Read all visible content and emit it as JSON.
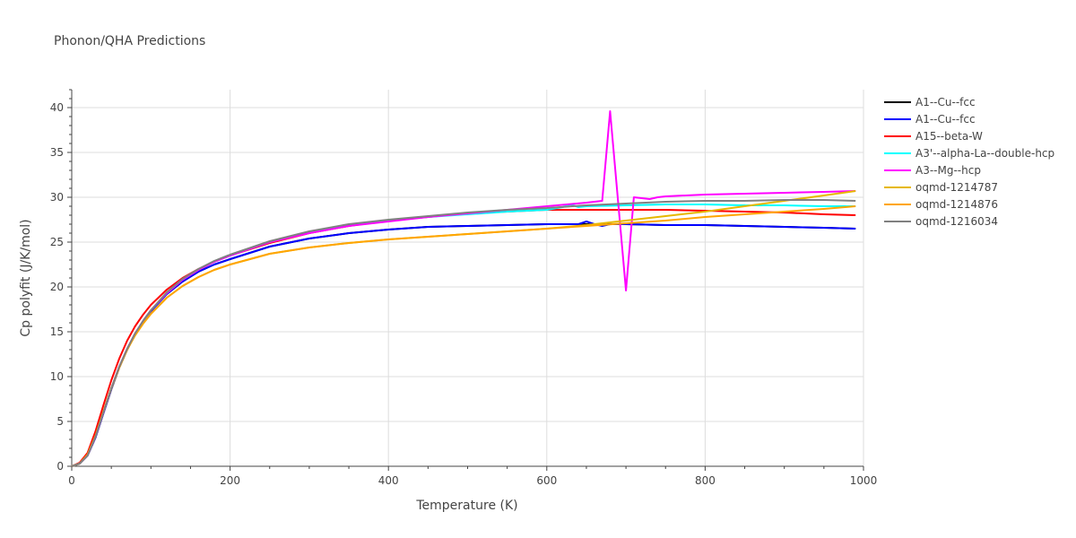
{
  "chart_data": {
    "type": "line",
    "title": "Phonon/QHA Predictions",
    "xlabel": "Temperature (K)",
    "ylabel": "Cp polyfit (J/K/mol)",
    "xlim": [
      0,
      1000
    ],
    "ylim": [
      0,
      42
    ],
    "xticks": [
      0,
      200,
      400,
      600,
      800,
      1000
    ],
    "yticks": [
      0,
      5,
      10,
      15,
      20,
      25,
      30,
      35,
      40
    ],
    "grid": true,
    "legend_position": "top-right",
    "series": [
      {
        "name": "A1--Cu--fcc",
        "color": "#000000",
        "x": [
          0,
          10,
          20,
          30,
          40,
          50,
          60,
          70,
          80,
          90,
          100,
          120,
          140,
          160,
          180,
          200,
          250,
          300,
          350,
          400,
          450,
          500,
          550,
          600,
          650,
          700,
          750,
          800,
          850,
          900,
          950,
          990
        ],
        "y": [
          0,
          0.3,
          1.2,
          3.2,
          5.9,
          8.6,
          11.0,
          13.0,
          14.7,
          16.1,
          17.3,
          19.2,
          20.6,
          21.7,
          22.5,
          23.1,
          24.5,
          25.4,
          26.0,
          26.4,
          26.7,
          26.8,
          26.9,
          27.0,
          27.0,
          27.0,
          26.9,
          26.9,
          26.8,
          26.7,
          26.6,
          26.5
        ]
      },
      {
        "name": "A1--Cu--fcc",
        "color": "#0000ff",
        "x": [
          0,
          10,
          20,
          30,
          40,
          50,
          60,
          70,
          80,
          90,
          100,
          120,
          140,
          160,
          180,
          200,
          250,
          300,
          350,
          400,
          450,
          500,
          550,
          600,
          640,
          650,
          660,
          670,
          680,
          700,
          750,
          800,
          850,
          900,
          950,
          990
        ],
        "y": [
          0,
          0.3,
          1.2,
          3.2,
          5.9,
          8.6,
          11.0,
          13.0,
          14.7,
          16.1,
          17.3,
          19.2,
          20.6,
          21.7,
          22.5,
          23.1,
          24.5,
          25.4,
          26.0,
          26.4,
          26.7,
          26.8,
          26.9,
          27.0,
          27.0,
          27.3,
          27.0,
          26.8,
          27.0,
          27.0,
          26.9,
          26.9,
          26.8,
          26.7,
          26.6,
          26.5
        ]
      },
      {
        "name": "A15--beta-W",
        "color": "#ff0000",
        "x": [
          0,
          10,
          20,
          30,
          40,
          50,
          60,
          70,
          80,
          90,
          100,
          120,
          140,
          160,
          180,
          200,
          250,
          300,
          350,
          400,
          450,
          500,
          550,
          600,
          650,
          700,
          750,
          800,
          850,
          900,
          950,
          990
        ],
        "y": [
          0,
          0.4,
          1.5,
          3.9,
          6.8,
          9.6,
          12.0,
          14.0,
          15.6,
          16.9,
          18.0,
          19.7,
          21.0,
          22.0,
          22.8,
          23.5,
          24.9,
          26.0,
          26.8,
          27.4,
          27.8,
          28.2,
          28.4,
          28.6,
          28.6,
          28.6,
          28.6,
          28.5,
          28.4,
          28.3,
          28.1,
          28.0
        ]
      },
      {
        "name": "A3'--alpha-La--double-hcp",
        "color": "#00ffff",
        "x": [
          0,
          10,
          20,
          30,
          40,
          50,
          60,
          70,
          80,
          90,
          100,
          120,
          140,
          160,
          180,
          200,
          250,
          300,
          350,
          400,
          450,
          500,
          550,
          600,
          620,
          630,
          640,
          650,
          700,
          750,
          800,
          850,
          900,
          950,
          990
        ],
        "y": [
          0,
          0.3,
          1.2,
          3.3,
          6.0,
          8.7,
          11.1,
          13.1,
          14.8,
          16.2,
          17.4,
          19.3,
          20.8,
          21.9,
          22.8,
          23.5,
          25.0,
          26.1,
          26.9,
          27.4,
          27.8,
          28.1,
          28.4,
          28.6,
          28.9,
          29.2,
          28.9,
          29.0,
          29.1,
          29.2,
          29.2,
          29.1,
          29.1,
          29.0,
          29.0
        ]
      },
      {
        "name": "A3--Mg--hcp",
        "color": "#ff00ff",
        "x": [
          0,
          10,
          20,
          30,
          40,
          50,
          60,
          70,
          80,
          90,
          100,
          120,
          140,
          160,
          180,
          200,
          250,
          300,
          350,
          400,
          450,
          500,
          550,
          600,
          650,
          670,
          680,
          700,
          710,
          730,
          740,
          750,
          800,
          850,
          900,
          950,
          990
        ],
        "y": [
          0,
          0.3,
          1.2,
          3.3,
          6.0,
          8.7,
          11.1,
          13.1,
          14.8,
          16.2,
          17.4,
          19.3,
          20.8,
          21.9,
          22.8,
          23.5,
          25.0,
          26.0,
          26.8,
          27.3,
          27.8,
          28.2,
          28.6,
          29.0,
          29.4,
          29.6,
          39.6,
          19.6,
          30.0,
          29.8,
          30.0,
          30.1,
          30.3,
          30.4,
          30.5,
          30.6,
          30.7
        ]
      },
      {
        "name": "oqmd-1214787",
        "color": "#e6b800",
        "x": [
          0,
          10,
          20,
          30,
          40,
          50,
          60,
          70,
          80,
          90,
          100,
          120,
          140,
          160,
          180,
          200,
          250,
          300,
          350,
          400,
          450,
          500,
          550,
          600,
          650,
          700,
          750,
          800,
          850,
          900,
          950,
          990
        ],
        "y": [
          0,
          0.3,
          1.3,
          3.4,
          6.1,
          8.7,
          11.0,
          13.0,
          14.6,
          15.9,
          17.0,
          18.8,
          20.1,
          21.1,
          21.9,
          22.5,
          23.7,
          24.4,
          24.9,
          25.3,
          25.6,
          25.9,
          26.2,
          26.5,
          26.9,
          27.4,
          27.9,
          28.4,
          29.0,
          29.6,
          30.2,
          30.7
        ]
      },
      {
        "name": "oqmd-1214876",
        "color": "#ffa500",
        "x": [
          0,
          10,
          20,
          30,
          40,
          50,
          60,
          70,
          80,
          90,
          100,
          120,
          140,
          160,
          180,
          200,
          250,
          300,
          350,
          400,
          450,
          500,
          550,
          600,
          650,
          700,
          750,
          800,
          850,
          900,
          950,
          990
        ],
        "y": [
          0,
          0.3,
          1.3,
          3.4,
          6.1,
          8.7,
          11.0,
          13.0,
          14.6,
          15.9,
          17.0,
          18.8,
          20.1,
          21.1,
          21.9,
          22.5,
          23.7,
          24.4,
          24.9,
          25.3,
          25.6,
          25.9,
          26.2,
          26.5,
          26.8,
          27.1,
          27.4,
          27.8,
          28.1,
          28.4,
          28.7,
          29.0
        ]
      },
      {
        "name": "oqmd-1216034",
        "color": "#808080",
        "x": [
          0,
          10,
          20,
          30,
          40,
          50,
          60,
          70,
          80,
          90,
          100,
          120,
          140,
          160,
          180,
          200,
          250,
          300,
          350,
          400,
          450,
          500,
          550,
          600,
          650,
          700,
          750,
          800,
          850,
          900,
          950,
          990
        ],
        "y": [
          0,
          0.3,
          1.2,
          3.3,
          6.0,
          8.7,
          11.1,
          13.1,
          14.8,
          16.2,
          17.4,
          19.4,
          20.9,
          22.0,
          22.9,
          23.6,
          25.1,
          26.2,
          27.0,
          27.5,
          27.9,
          28.3,
          28.6,
          28.8,
          29.1,
          29.3,
          29.5,
          29.6,
          29.6,
          29.7,
          29.7,
          29.6
        ]
      }
    ]
  }
}
